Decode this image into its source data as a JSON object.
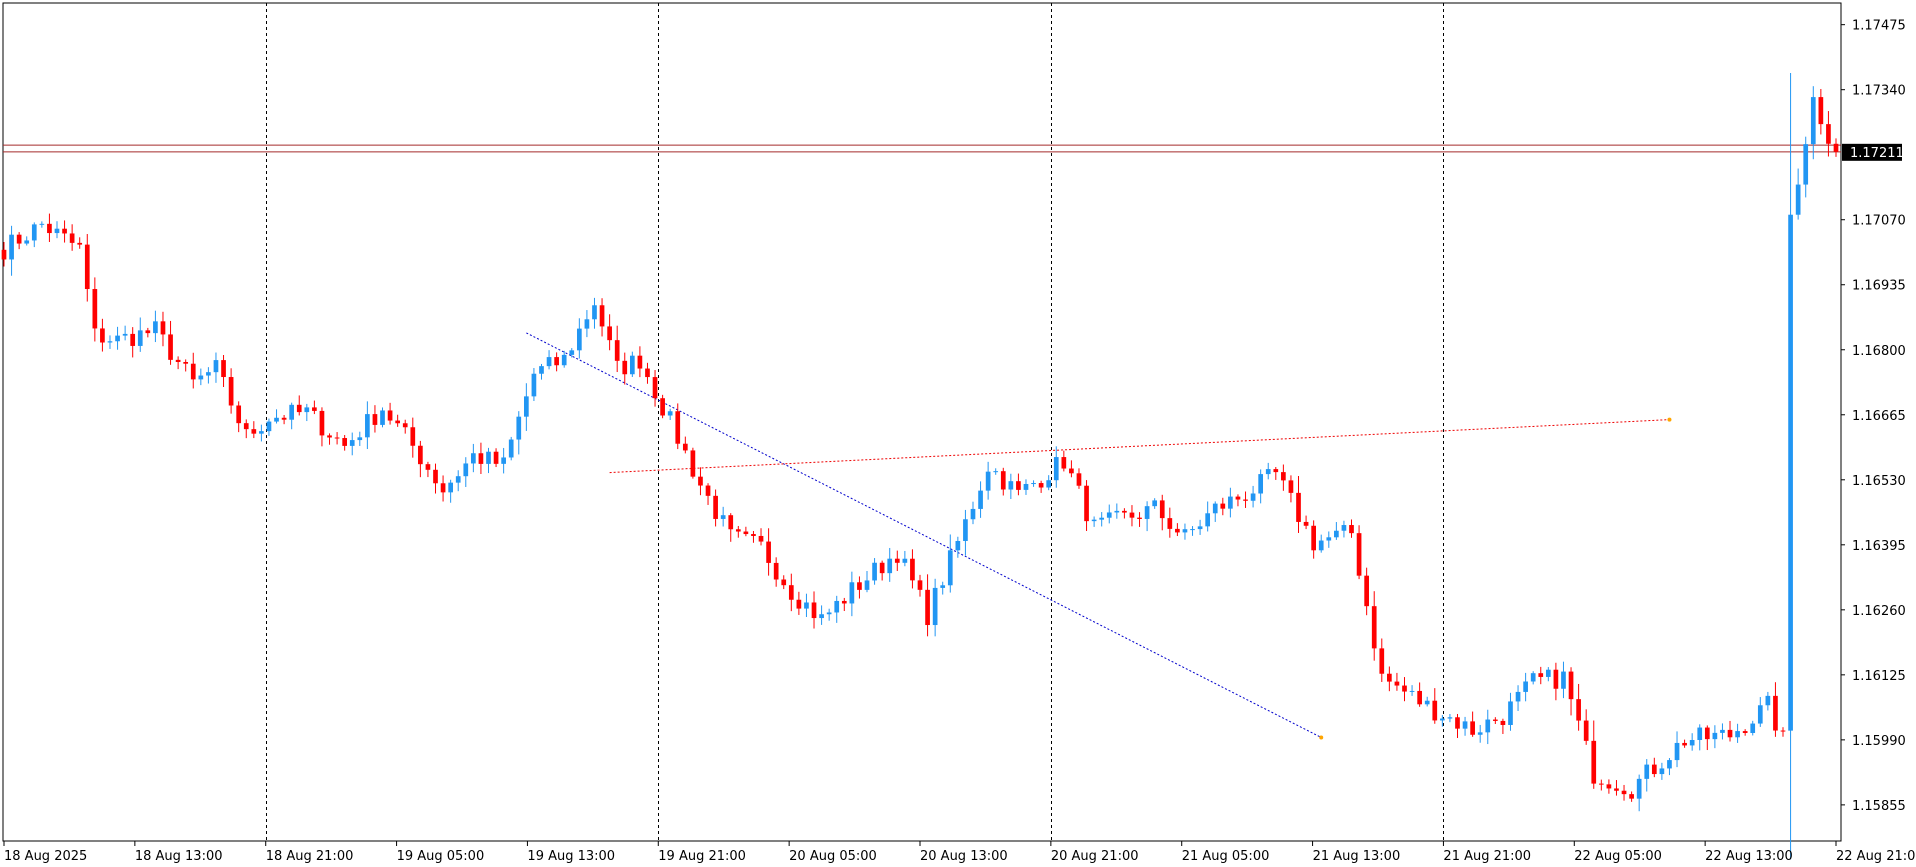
{
  "chart_data": {
    "type": "candlestick",
    "symbol_timeframe": "",
    "y_range": [
      1.1578,
      1.1752
    ],
    "y_ticks": [
      "1.17475",
      "1.17340",
      "1.17070",
      "1.16935",
      "1.16800",
      "1.16665",
      "1.16530",
      "1.16395",
      "1.16260",
      "1.16125",
      "1.15990",
      "1.15855"
    ],
    "x_labels": [
      "18 Aug 2025",
      "18 Aug 13:00",
      "18 Aug 21:00",
      "19 Aug 05:00",
      "19 Aug 13:00",
      "19 Aug 21:00",
      "20 Aug 05:00",
      "20 Aug 13:00",
      "20 Aug 21:00",
      "21 Aug 05:00",
      "21 Aug 13:00",
      "21 Aug 21:00",
      "22 Aug 05:00",
      "22 Aug 13:00",
      "22 Aug 21:00"
    ],
    "session_separators": [
      "18 Aug 21:00",
      "19 Aug 21:00",
      "20 Aug 21:00",
      "21 Aug 21:00"
    ],
    "current_price": "1.17211",
    "current_price_color": "#000000",
    "bull_color": "#2196f3",
    "bear_color": "#ff0000",
    "candle_count": 243,
    "keypoints": [
      [
        0,
        1.1701
      ],
      [
        5,
        1.1706
      ],
      [
        10,
        1.1701
      ],
      [
        12,
        1.1683
      ],
      [
        15,
        1.1682
      ],
      [
        20,
        1.1684
      ],
      [
        25,
        1.1673
      ],
      [
        28,
        1.1676
      ],
      [
        32,
        1.1662
      ],
      [
        35,
        1.1666
      ],
      [
        40,
        1.1667
      ],
      [
        45,
        1.166
      ],
      [
        50,
        1.1668
      ],
      [
        54,
        1.166
      ],
      [
        58,
        1.1651
      ],
      [
        62,
        1.1658
      ],
      [
        66,
        1.1656
      ],
      [
        70,
        1.1675
      ],
      [
        74,
        1.1678
      ],
      [
        78,
        1.169
      ],
      [
        81,
        1.1676
      ],
      [
        84,
        1.1678
      ],
      [
        88,
        1.1665
      ],
      [
        92,
        1.1652
      ],
      [
        96,
        1.1641
      ],
      [
        100,
        1.1639
      ],
      [
        104,
        1.163
      ],
      [
        108,
        1.1624
      ],
      [
        112,
        1.163
      ],
      [
        118,
        1.1638
      ],
      [
        122,
        1.1625
      ],
      [
        126,
        1.164
      ],
      [
        130,
        1.1656
      ],
      [
        134,
        1.165
      ],
      [
        140,
        1.1657
      ],
      [
        144,
        1.1643
      ],
      [
        148,
        1.1645
      ],
      [
        152,
        1.1647
      ],
      [
        156,
        1.1641
      ],
      [
        160,
        1.1647
      ],
      [
        164,
        1.165
      ],
      [
        168,
        1.1654
      ],
      [
        173,
        1.164
      ],
      [
        178,
        1.1642
      ],
      [
        182,
        1.1612
      ],
      [
        188,
        1.1606
      ],
      [
        194,
        1.1601
      ],
      [
        198,
        1.1604
      ],
      [
        202,
        1.1611
      ],
      [
        206,
        1.1612
      ],
      [
        210,
        1.1592
      ],
      [
        215,
        1.1589
      ],
      [
        222,
        1.1599
      ],
      [
        228,
        1.16
      ],
      [
        233,
        1.1606
      ],
      [
        235,
        1.1599
      ],
      [
        236,
        1.1708
      ],
      [
        239,
        1.1732
      ],
      [
        242,
        1.1721
      ]
    ],
    "indicators": [
      {
        "kind": "trendline",
        "color": "#0000cc",
        "from": [
          69,
          1.16835
        ],
        "to": [
          174,
          1.15995
        ]
      },
      {
        "kind": "trendline",
        "color": "#ee0000",
        "from": [
          80,
          1.16545
        ],
        "to": [
          220,
          1.16655
        ]
      },
      {
        "kind": "horizontal",
        "color": "#a52a2a",
        "price": 1.17225
      }
    ]
  }
}
